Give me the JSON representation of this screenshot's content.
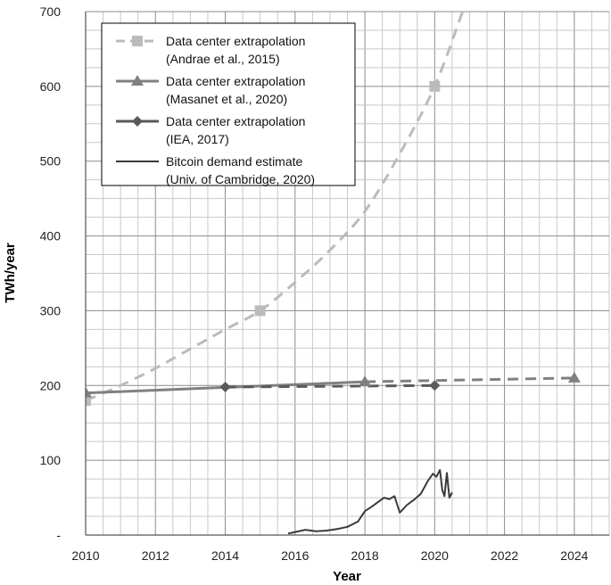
{
  "chart_data": {
    "type": "line",
    "title": "",
    "xlabel": "Year",
    "ylabel": "TWh/year",
    "xlim": [
      2010,
      2025
    ],
    "ylim": [
      0,
      700
    ],
    "grid": true,
    "legend_position": "top-left",
    "x_ticks": [
      "2010",
      "2012",
      "2014",
      "2016",
      "2018",
      "2020",
      "2022",
      "2024"
    ],
    "y_ticks": [
      "-",
      "100",
      "200",
      "300",
      "400",
      "500",
      "600",
      "700"
    ],
    "series": [
      {
        "name": "Data center extrapolation (Andrae et al., 2015)",
        "legend_lines": [
          "Data center extrapolation",
          "(Andrae et al., 2015)"
        ],
        "color": "#bbbbbb",
        "marker": "square",
        "line_style": "dashed",
        "points": [
          [
            2010,
            180
          ],
          [
            2015,
            300
          ],
          [
            2020,
            600
          ]
        ],
        "curve": [
          [
            2010,
            180
          ],
          [
            2011,
            200
          ],
          [
            2012,
            223
          ],
          [
            2013,
            249
          ],
          [
            2014,
            275
          ],
          [
            2015,
            300
          ],
          [
            2016,
            338
          ],
          [
            2017,
            381
          ],
          [
            2018,
            433
          ],
          [
            2019,
            510
          ],
          [
            2020,
            600
          ],
          [
            2020.8,
            700
          ]
        ]
      },
      {
        "name": "Data center extrapolation (Masanet et al., 2020)",
        "legend_lines": [
          "Data center extrapolation",
          "(Masanet et al., 2020)"
        ],
        "color": "#808080",
        "marker": "triangle",
        "line_style": "solid",
        "points": [
          [
            2010,
            190
          ],
          [
            2018,
            205
          ],
          [
            2024,
            210
          ]
        ],
        "solid_segment": [
          [
            2010,
            190
          ],
          [
            2018,
            205
          ]
        ],
        "dashed_segment": [
          [
            2018,
            205
          ],
          [
            2024,
            210
          ]
        ]
      },
      {
        "name": "Data center extrapolation (IEA, 2017)",
        "legend_lines": [
          "Data center extrapolation",
          "(IEA, 2017)"
        ],
        "color": "#5a5a5a",
        "marker": "diamond",
        "line_style": "solid",
        "points": [
          [
            2014,
            198
          ],
          [
            2020,
            200
          ]
        ],
        "dashed_segment": [
          [
            2014,
            198
          ],
          [
            2020,
            200
          ]
        ]
      },
      {
        "name": "Bitcoin demand estimate (Univ. of Cambridge, 2020)",
        "legend_lines": [
          "Bitcoin demand estimate",
          "(Univ. of Cambridge, 2020)"
        ],
        "color": "#3a3a3a",
        "marker": "none",
        "line_style": "solid",
        "curve": [
          [
            2015.8,
            2
          ],
          [
            2016.0,
            4
          ],
          [
            2016.3,
            7
          ],
          [
            2016.6,
            5
          ],
          [
            2016.9,
            6
          ],
          [
            2017.2,
            8
          ],
          [
            2017.5,
            11
          ],
          [
            2017.8,
            18
          ],
          [
            2018.0,
            32
          ],
          [
            2018.2,
            38
          ],
          [
            2018.4,
            45
          ],
          [
            2018.55,
            50
          ],
          [
            2018.7,
            48
          ],
          [
            2018.85,
            52
          ],
          [
            2019.0,
            30
          ],
          [
            2019.2,
            40
          ],
          [
            2019.4,
            47
          ],
          [
            2019.6,
            55
          ],
          [
            2019.8,
            72
          ],
          [
            2019.95,
            82
          ],
          [
            2020.05,
            78
          ],
          [
            2020.15,
            87
          ],
          [
            2020.22,
            60
          ],
          [
            2020.28,
            52
          ],
          [
            2020.35,
            83
          ],
          [
            2020.42,
            50
          ],
          [
            2020.5,
            57
          ]
        ]
      }
    ]
  }
}
